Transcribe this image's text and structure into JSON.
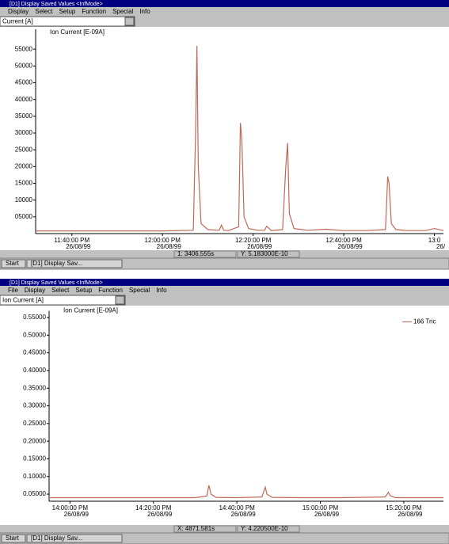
{
  "windows": [
    {
      "title": "[D1] Display Saved Values <InfMode>",
      "menu": [
        "Display",
        "Select",
        "Setup",
        "Function",
        "Special",
        "Info"
      ],
      "selector": "Current [A]",
      "status": [
        "1: 3406.555s",
        "Y: 5.183000E-10"
      ],
      "taskbar": [
        "Start",
        "[D1] Display Sav..."
      ]
    },
    {
      "title": "[D1] Display Saved Values <InfMode>",
      "menu": [
        "File",
        "Display",
        "Select",
        "Setup",
        "Function",
        "Special",
        "Info"
      ],
      "selector": "Ion Current [A]",
      "status": [
        "X: 4871.581s",
        "Y: 4.220500E-10"
      ],
      "taskbar": [
        "Start",
        "[D1] Display Sav..."
      ]
    }
  ],
  "chart_data": [
    {
      "type": "line",
      "y_label": "Ion Current [E-09A]",
      "xlim": [
        -8,
        82
      ],
      "ylim": [
        0,
        60000
      ],
      "xticks": [
        {
          "value": 0,
          "label": "11:40:00 PM"
        },
        {
          "value": 20,
          "label": "12:00:00 PM"
        },
        {
          "value": 40,
          "label": "12:20:00 PM"
        },
        {
          "value": 60,
          "label": "12:40:00 PM"
        },
        {
          "value": 80,
          "label": "13:0"
        }
      ],
      "xtick_dates": [
        "26/08/99",
        "26/08/99",
        "26/08/99",
        "26/08/99",
        "26/"
      ],
      "yticks": [
        55000,
        50000,
        45000,
        40000,
        35000,
        30000,
        25000,
        20000,
        15000,
        10000,
        {
          "value": 5000,
          "label": "05000"
        }
      ],
      "series": [
        {
          "color": "#c06858",
          "x": [
            -8,
            0,
            10,
            20,
            26.8,
            27.3,
            27.6,
            27.9,
            28.5,
            30,
            32.5,
            33,
            33.5,
            34.5,
            36.8,
            37.2,
            37.5,
            38,
            39,
            41,
            42.5,
            43,
            44,
            46.5,
            47.2,
            47.6,
            48,
            49,
            52,
            56,
            60,
            65,
            69.2,
            69.7,
            70,
            70.5,
            71.5,
            74,
            78,
            80,
            82
          ],
          "values": [
            800,
            800,
            800,
            800,
            1000,
            30000,
            56000,
            20000,
            3000,
            1200,
            1000,
            2500,
            1000,
            900,
            2000,
            33000,
            28000,
            5000,
            1500,
            1000,
            1000,
            2200,
            900,
            1200,
            20000,
            27000,
            6000,
            1500,
            1000,
            1300,
            900,
            900,
            1200,
            17000,
            15000,
            3000,
            1200,
            900,
            900,
            1500,
            900
          ]
        }
      ]
    },
    {
      "type": "line",
      "y_label": "Ion Current [E-09A]",
      "xlim": [
        -5,
        89.5
      ],
      "ylim": [
        0.03,
        0.56
      ],
      "xticks": [
        {
          "value": 0,
          "label": "14:00:00 PM"
        },
        {
          "value": 20,
          "label": "14:20:00 PM"
        },
        {
          "value": 40,
          "label": "14:40:00 PM"
        },
        {
          "value": 60,
          "label": "15:00:00 PM"
        },
        {
          "value": 80,
          "label": "15:20:00 PM"
        }
      ],
      "xtick_dates": [
        "26/08/99",
        "26/08/99",
        "26/08/99",
        "26/08/99",
        "26/08/99"
      ],
      "yticks": [
        {
          "value": 0.55,
          "label": "0.55000"
        },
        {
          "value": 0.5,
          "label": "0.50000"
        },
        {
          "value": 0.45,
          "label": "0.45000"
        },
        {
          "value": 0.4,
          "label": "0.40000"
        },
        {
          "value": 0.35,
          "label": "0.35000"
        },
        {
          "value": 0.3,
          "label": "0.30000"
        },
        {
          "value": 0.25,
          "label": "0.25000"
        },
        {
          "value": 0.2,
          "label": "0.20000"
        },
        {
          "value": 0.15,
          "label": "0.15000"
        },
        {
          "value": 0.1,
          "label": "0.10000"
        },
        {
          "value": 0.05,
          "label": "0.05000"
        }
      ],
      "series": [
        {
          "name": "166 Tric",
          "color": "#c06858",
          "x": [
            -5,
            0,
            10,
            20,
            30,
            32.8,
            33.3,
            33.8,
            35,
            40,
            46,
            46.5,
            46.8,
            47.2,
            48.5,
            55,
            65,
            75.5,
            76,
            76.3,
            76.8,
            78,
            85,
            89.5
          ],
          "values": [
            0.04,
            0.04,
            0.04,
            0.04,
            0.04,
            0.045,
            0.075,
            0.05,
            0.041,
            0.04,
            0.042,
            0.06,
            0.07,
            0.05,
            0.041,
            0.04,
            0.04,
            0.042,
            0.05,
            0.055,
            0.045,
            0.04,
            0.04,
            0.04
          ]
        }
      ]
    }
  ]
}
